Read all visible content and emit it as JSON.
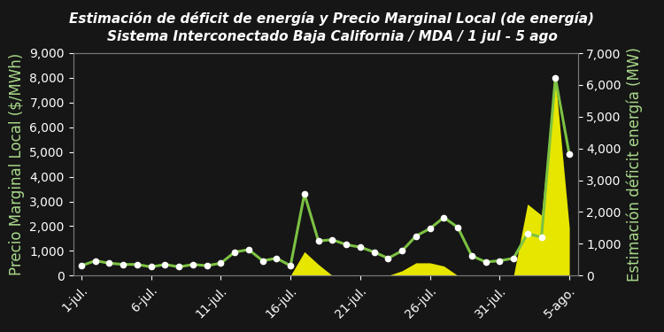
{
  "chart_data": {
    "type": "line",
    "title": "Estimación de déficit de energía y Precio Marginal Local (de energía)",
    "subtitle": "Sistema Interconectado Baja California / MDA / 1 jul - 5 ago",
    "y_label": "Precio Marginal Local ($/MWh)",
    "y2_label": "Estimación déficit energía (MW)",
    "categories": [
      "1-jul.",
      null,
      null,
      null,
      null,
      "6-jul.",
      null,
      null,
      null,
      null,
      "11-jul.",
      null,
      null,
      null,
      null,
      "16-jul.",
      null,
      null,
      null,
      null,
      "21-jul.",
      null,
      null,
      null,
      null,
      "26-jul.",
      null,
      null,
      null,
      null,
      "31-jul.",
      null,
      null,
      null,
      null,
      "5-ago."
    ],
    "series": [
      {
        "type": "area",
        "axis": "y2",
        "color": "#e6e600",
        "values": [
          0,
          0,
          0,
          0,
          0,
          0,
          0,
          0,
          0,
          0,
          0,
          0,
          0,
          0,
          0,
          0,
          750,
          350,
          0,
          0,
          0,
          0,
          0,
          150,
          400,
          400,
          300,
          0,
          0,
          0,
          0,
          0,
          2250,
          1900,
          6200,
          1500
        ]
      },
      {
        "type": "line",
        "color": "#7cc242",
        "marker": "circle",
        "values": [
          400,
          600,
          500,
          450,
          450,
          350,
          450,
          350,
          450,
          400,
          500,
          950,
          1050,
          600,
          700,
          400,
          3300,
          1400,
          1450,
          1250,
          1150,
          950,
          700,
          1000,
          1600,
          1900,
          2350,
          1950,
          800,
          550,
          600,
          700,
          1700,
          1550,
          8000,
          4900
        ]
      }
    ],
    "ylim": [
      0,
      9000
    ],
    "yticks": [
      0,
      {
        "value": 1000,
        "label": "1,000"
      },
      {
        "value": 2000,
        "label": "2,000"
      },
      {
        "value": 3000,
        "label": "3,000"
      },
      {
        "value": 4000,
        "label": "4,000"
      },
      {
        "value": 5000,
        "label": "5,000"
      },
      {
        "value": 6000,
        "label": "6,000"
      },
      {
        "value": 7000,
        "label": "7,000"
      },
      {
        "value": 8000,
        "label": "8,000"
      },
      {
        "value": 9000,
        "label": "9,000"
      }
    ],
    "y2lim": [
      0,
      7000
    ],
    "y2ticks": [
      0,
      {
        "value": 1000,
        "label": "1,000"
      },
      {
        "value": 2000,
        "label": "2,000"
      },
      {
        "value": 3000,
        "label": "3,000"
      },
      {
        "value": 4000,
        "label": "4,000"
      },
      {
        "value": 5000,
        "label": "5,000"
      },
      {
        "value": 6000,
        "label": "6,000"
      },
      {
        "value": 7000,
        "label": "7,000"
      }
    ],
    "grid": false
  }
}
